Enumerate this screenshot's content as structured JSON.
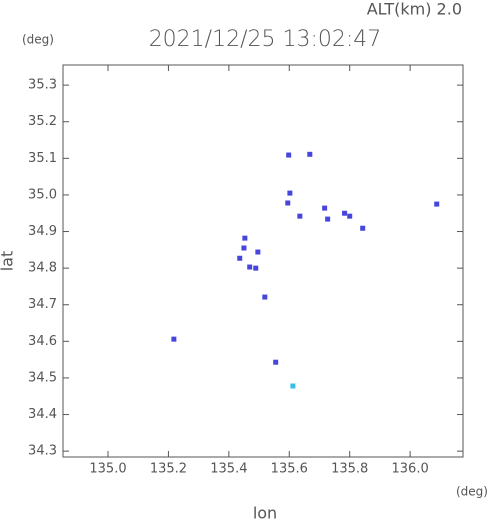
{
  "chart_data": {
    "type": "scatter",
    "title": "2021/12/25 13:02:47",
    "subtitle": "ALT(km) 2.0",
    "x_label": "lon",
    "y_label": "lat",
    "x_unit": "(deg)",
    "y_unit": "(deg)",
    "xlim": [
      134.851,
      136.175
    ],
    "ylim": [
      34.284,
      35.355
    ],
    "xticks": [
      {
        "value": 135,
        "label": "135.0"
      },
      135.2,
      135.4,
      135.6,
      135.8,
      {
        "value": 136,
        "label": "136.0"
      }
    ],
    "yticks": [
      34.3,
      34.4,
      34.5,
      34.6,
      34.7,
      34.8,
      34.9,
      {
        "value": 35,
        "label": "35.0"
      },
      35.1,
      35.2,
      35.3
    ],
    "series": [
      {
        "color": "#4646dc",
        "x": [
          135.598,
          135.668,
          135.602,
          135.595,
          135.635,
          135.453,
          135.45,
          135.469,
          135.489,
          135.436,
          135.496,
          135.519,
          135.717,
          135.727,
          135.783,
          135.8,
          135.843,
          136.088,
          135.555,
          135.218
        ],
        "values": [
          35.109,
          35.111,
          35.005,
          34.978,
          34.942,
          34.882,
          34.855,
          34.803,
          34.8,
          34.827,
          34.844,
          34.721,
          34.964,
          34.934,
          34.95,
          34.942,
          34.909,
          34.975,
          34.543,
          34.606
        ]
      },
      {
        "color": "#33c0e8",
        "x": [
          135.612
        ],
        "values": [
          34.478
        ]
      }
    ]
  }
}
